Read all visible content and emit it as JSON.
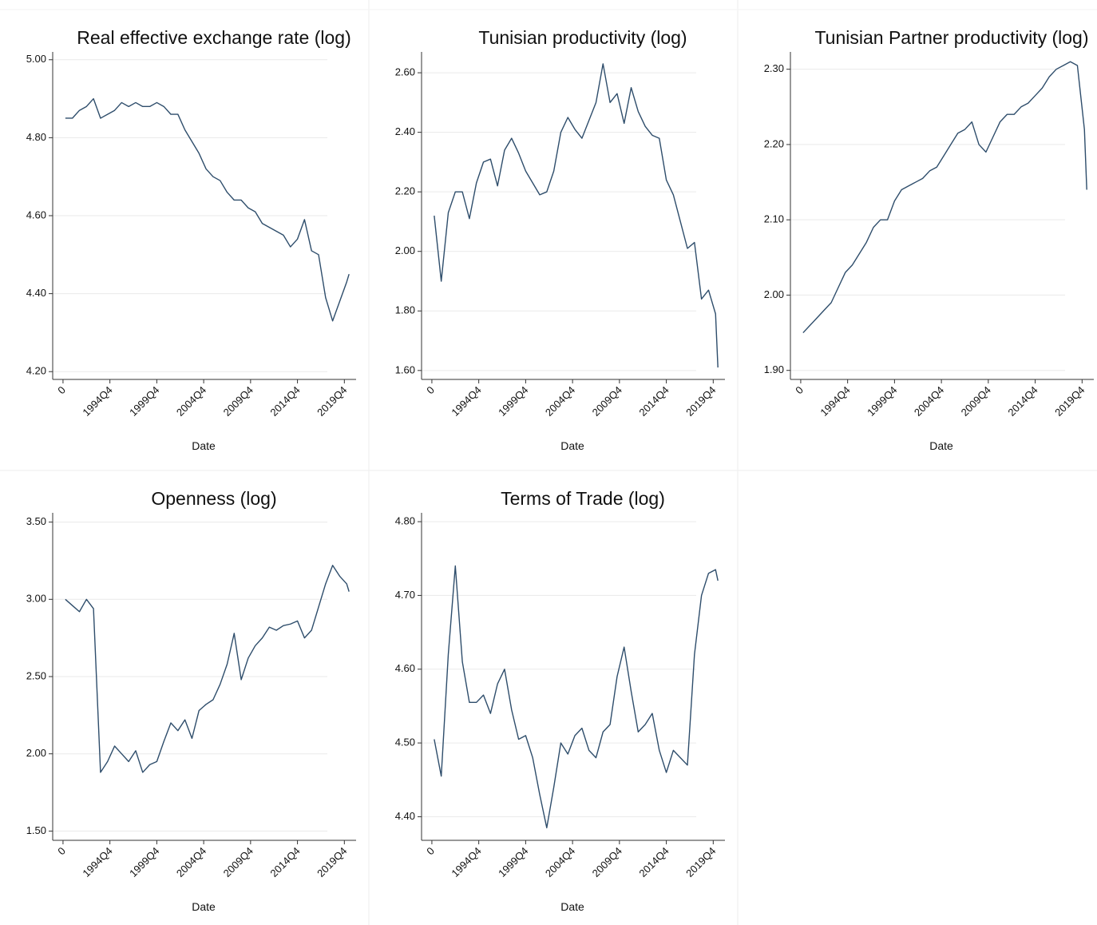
{
  "chart_data": [
    {
      "type": "line",
      "title": "Real effective exchange rate (log)",
      "xlabel": "Date",
      "color": "#2e4d6b",
      "grid": true,
      "xlim": [
        -4.4,
        125
      ],
      "ylim": [
        4.18,
        5.02
      ],
      "xticks": [
        0,
        {
          "value": 20,
          "label": "1994Q4"
        },
        {
          "value": 40,
          "label": "1999Q4"
        },
        {
          "value": 60,
          "label": "2004Q4"
        },
        {
          "value": 80,
          "label": "2009Q4"
        },
        {
          "value": 100,
          "label": "2014Q4"
        },
        {
          "value": 120,
          "label": "2019Q4"
        }
      ],
      "yticks": [
        {
          "value": 4.2,
          "label": "4.20"
        },
        {
          "value": 4.4,
          "label": "4.40"
        },
        {
          "value": 4.6,
          "label": "4.60"
        },
        {
          "value": 4.8,
          "label": "4.80"
        },
        {
          "value": 5.0,
          "label": "5.00"
        }
      ],
      "x": [
        1,
        4,
        7,
        10,
        13,
        16,
        19,
        22,
        25,
        28,
        31,
        34,
        37,
        40,
        43,
        46,
        49,
        52,
        55,
        58,
        61,
        64,
        67,
        70,
        73,
        76,
        79,
        82,
        85,
        88,
        91,
        94,
        97,
        100,
        103,
        106,
        109,
        112,
        115,
        118,
        121,
        122
      ],
      "values": [
        4.85,
        4.85,
        4.87,
        4.88,
        4.9,
        4.85,
        4.86,
        4.87,
        4.89,
        4.88,
        4.89,
        4.88,
        4.88,
        4.89,
        4.88,
        4.86,
        4.86,
        4.82,
        4.79,
        4.76,
        4.72,
        4.7,
        4.69,
        4.66,
        4.64,
        4.64,
        4.62,
        4.61,
        4.58,
        4.57,
        4.56,
        4.55,
        4.52,
        4.54,
        4.59,
        4.51,
        4.5,
        4.39,
        4.33,
        4.38,
        4.43,
        4.45
      ]
    },
    {
      "type": "line",
      "title": "Tunisian productivity (log)",
      "xlabel": "Date",
      "color": "#2e4d6b",
      "grid": true,
      "xlim": [
        -4.4,
        125
      ],
      "ylim": [
        1.57,
        2.67
      ],
      "xticks": [
        0,
        {
          "value": 20,
          "label": "1994Q4"
        },
        {
          "value": 40,
          "label": "1999Q4"
        },
        {
          "value": 60,
          "label": "2004Q4"
        },
        {
          "value": 80,
          "label": "2009Q4"
        },
        {
          "value": 100,
          "label": "2014Q4"
        },
        {
          "value": 120,
          "label": "2019Q4"
        }
      ],
      "yticks": [
        {
          "value": 1.6,
          "label": "1.60"
        },
        {
          "value": 1.8,
          "label": "1.80"
        },
        {
          "value": 2.0,
          "label": "2.00"
        },
        {
          "value": 2.2,
          "label": "2.20"
        },
        {
          "value": 2.4,
          "label": "2.40"
        },
        {
          "value": 2.6,
          "label": "2.60"
        }
      ],
      "x": [
        1,
        4,
        7,
        10,
        13,
        16,
        19,
        22,
        25,
        28,
        31,
        34,
        37,
        40,
        43,
        46,
        49,
        52,
        55,
        58,
        61,
        64,
        67,
        70,
        73,
        76,
        79,
        82,
        85,
        88,
        91,
        94,
        97,
        100,
        103,
        106,
        109,
        112,
        115,
        118,
        121,
        122
      ],
      "values": [
        2.12,
        1.9,
        2.13,
        2.2,
        2.2,
        2.11,
        2.23,
        2.3,
        2.31,
        2.22,
        2.34,
        2.38,
        2.33,
        2.27,
        2.23,
        2.19,
        2.2,
        2.27,
        2.4,
        2.45,
        2.41,
        2.38,
        2.44,
        2.5,
        2.63,
        2.5,
        2.53,
        2.43,
        2.55,
        2.47,
        2.42,
        2.39,
        2.38,
        2.24,
        2.19,
        2.1,
        2.01,
        2.03,
        1.84,
        1.87,
        1.79,
        1.61
      ]
    },
    {
      "type": "line",
      "title": "Tunisian Partner productivity (log)",
      "xlabel": "Date",
      "color": "#2e4d6b",
      "grid": true,
      "xlim": [
        -4.4,
        125
      ],
      "ylim": [
        1.888,
        2.323
      ],
      "xticks": [
        0,
        {
          "value": 20,
          "label": "1994Q4"
        },
        {
          "value": 40,
          "label": "1999Q4"
        },
        {
          "value": 60,
          "label": "2004Q4"
        },
        {
          "value": 80,
          "label": "2009Q4"
        },
        {
          "value": 100,
          "label": "2014Q4"
        },
        {
          "value": 120,
          "label": "2019Q4"
        }
      ],
      "yticks": [
        {
          "value": 1.9,
          "label": "1.90"
        },
        {
          "value": 2.0,
          "label": "2.00"
        },
        {
          "value": 2.1,
          "label": "2.10"
        },
        {
          "value": 2.2,
          "label": "2.20"
        },
        {
          "value": 2.3,
          "label": "2.30"
        }
      ],
      "x": [
        1,
        4,
        7,
        10,
        13,
        16,
        19,
        22,
        25,
        28,
        31,
        34,
        37,
        40,
        43,
        46,
        49,
        52,
        55,
        58,
        61,
        64,
        67,
        70,
        73,
        76,
        79,
        82,
        85,
        88,
        91,
        94,
        97,
        100,
        103,
        106,
        109,
        112,
        115,
        118,
        121,
        122
      ],
      "values": [
        1.95,
        1.96,
        1.97,
        1.98,
        1.99,
        2.01,
        2.03,
        2.04,
        2.055,
        2.07,
        2.09,
        2.1,
        2.1,
        2.125,
        2.14,
        2.145,
        2.15,
        2.155,
        2.165,
        2.17,
        2.185,
        2.2,
        2.215,
        2.22,
        2.23,
        2.2,
        2.19,
        2.21,
        2.23,
        2.24,
        2.24,
        2.25,
        2.255,
        2.265,
        2.275,
        2.29,
        2.3,
        2.305,
        2.31,
        2.305,
        2.22,
        2.14
      ]
    },
    {
      "type": "line",
      "title": "Openness (log)",
      "xlabel": "Date",
      "color": "#2e4d6b",
      "grid": true,
      "xlim": [
        -4.4,
        125
      ],
      "ylim": [
        1.44,
        3.56
      ],
      "xticks": [
        0,
        {
          "value": 20,
          "label": "1994Q4"
        },
        {
          "value": 40,
          "label": "1999Q4"
        },
        {
          "value": 60,
          "label": "2004Q4"
        },
        {
          "value": 80,
          "label": "2009Q4"
        },
        {
          "value": 100,
          "label": "2014Q4"
        },
        {
          "value": 120,
          "label": "2019Q4"
        }
      ],
      "yticks": [
        {
          "value": 1.5,
          "label": "1.50"
        },
        {
          "value": 2.0,
          "label": "2.00"
        },
        {
          "value": 2.5,
          "label": "2.50"
        },
        {
          "value": 3.0,
          "label": "3.00"
        },
        {
          "value": 3.5,
          "label": "3.50"
        }
      ],
      "x": [
        1,
        4,
        7,
        10,
        13,
        16,
        19,
        22,
        25,
        28,
        31,
        34,
        37,
        40,
        43,
        46,
        49,
        52,
        55,
        58,
        61,
        64,
        67,
        70,
        73,
        76,
        79,
        82,
        85,
        88,
        91,
        94,
        97,
        100,
        103,
        106,
        109,
        112,
        115,
        118,
        121,
        122
      ],
      "values": [
        3.0,
        2.96,
        2.92,
        3.0,
        2.94,
        1.88,
        1.95,
        2.05,
        2.0,
        1.95,
        2.02,
        1.88,
        1.93,
        1.95,
        2.08,
        2.2,
        2.15,
        2.22,
        2.1,
        2.28,
        2.32,
        2.35,
        2.45,
        2.58,
        2.78,
        2.48,
        2.62,
        2.7,
        2.75,
        2.82,
        2.8,
        2.83,
        2.84,
        2.86,
        2.75,
        2.8,
        2.95,
        3.1,
        3.22,
        3.15,
        3.1,
        3.05
      ]
    },
    {
      "type": "line",
      "title": "Terms of Trade (log)",
      "xlabel": "Date",
      "color": "#2e4d6b",
      "grid": true,
      "xlim": [
        -4.4,
        125
      ],
      "ylim": [
        4.368,
        4.812
      ],
      "xticks": [
        0,
        {
          "value": 20,
          "label": "1994Q4"
        },
        {
          "value": 40,
          "label": "1999Q4"
        },
        {
          "value": 60,
          "label": "2004Q4"
        },
        {
          "value": 80,
          "label": "2009Q4"
        },
        {
          "value": 100,
          "label": "2014Q4"
        },
        {
          "value": 120,
          "label": "2019Q4"
        }
      ],
      "yticks": [
        {
          "value": 4.4,
          "label": "4.40"
        },
        {
          "value": 4.5,
          "label": "4.50"
        },
        {
          "value": 4.6,
          "label": "4.60"
        },
        {
          "value": 4.7,
          "label": "4.70"
        },
        {
          "value": 4.8,
          "label": "4.80"
        }
      ],
      "x": [
        1,
        4,
        7,
        10,
        13,
        16,
        19,
        22,
        25,
        28,
        31,
        34,
        37,
        40,
        43,
        46,
        49,
        52,
        55,
        58,
        61,
        64,
        67,
        70,
        73,
        76,
        79,
        82,
        85,
        88,
        91,
        94,
        97,
        100,
        103,
        106,
        109,
        112,
        115,
        118,
        121,
        122
      ],
      "values": [
        4.505,
        4.455,
        4.62,
        4.74,
        4.61,
        4.555,
        4.555,
        4.565,
        4.54,
        4.58,
        4.6,
        4.545,
        4.505,
        4.51,
        4.48,
        4.43,
        4.385,
        4.44,
        4.5,
        4.485,
        4.51,
        4.52,
        4.49,
        4.48,
        4.515,
        4.525,
        4.59,
        4.63,
        4.57,
        4.515,
        4.525,
        4.54,
        4.49,
        4.46,
        4.49,
        4.48,
        4.47,
        4.62,
        4.7,
        4.73,
        4.735,
        4.72
      ]
    }
  ]
}
